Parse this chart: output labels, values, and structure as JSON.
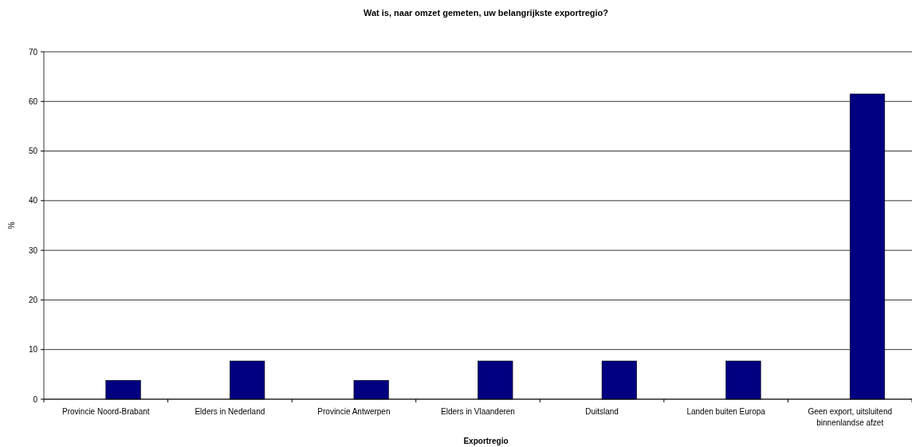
{
  "chart_data": {
    "type": "bar",
    "title": "Wat is, naar omzet gemeten, uw belangrijkste exportregio?",
    "xlabel": "Exportregio",
    "ylabel": "%",
    "categories": [
      "Provincie Noord-Brabant",
      "Elders in Nederland",
      "Provincie Antwerpen",
      "Elders in Vlaanderen",
      "Duitsland",
      "Landen buiten Europa",
      "Geen export, uitsluitend binnenlandse afzet"
    ],
    "values": [
      3.8,
      7.7,
      3.8,
      7.7,
      7.7,
      7.7,
      61.5
    ],
    "color": "#000080",
    "ylim": [
      0,
      70
    ],
    "yticks": [
      0,
      10,
      20,
      30,
      40,
      50,
      60,
      70
    ],
    "grid": "y"
  }
}
